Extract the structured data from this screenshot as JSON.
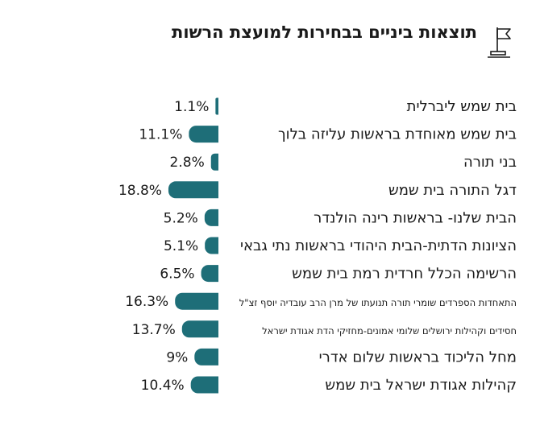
{
  "header": {
    "title": "תוצאות ביניים בבחירות למועצת הרשות",
    "icon": "flag-icon"
  },
  "colors": {
    "bar": "#1e6e78",
    "text": "#1a1a1a"
  },
  "chart_data": {
    "type": "bar",
    "orientation": "horizontal",
    "title": "תוצאות ביניים בבחירות למועצת הרשות",
    "unit": "%",
    "categories": [
      "בית שמש ליברלית",
      "בית שמש מאוחדת בראשות עליזה בלוך",
      "בני תורה",
      "דגל התורה בית שמש",
      "הבית שלנו- בראשות רינה הולנדר",
      "הציונות הדתית-הבית היהודי בראשות נתי גבאי",
      "הרשימה הכלל חרדית רמת בית שמש",
      "התאחדות הספרדים שומרי תורה תנועתו של מרן הרב עובדיה יוסף זצ\"ל",
      "חסידים וקהילות ירושלים שלומי אמונים-מחזיקי הדת אגודת ישראל",
      "מחל הליכוד בראשות שלום אדרי",
      "קהילות אגודת ישראל בית שמש"
    ],
    "values": [
      1.1,
      11.1,
      2.8,
      18.8,
      5.2,
      5.1,
      6.5,
      16.3,
      13.7,
      9,
      10.4
    ],
    "value_labels": [
      "1.1%",
      "11.1%",
      "2.8%",
      "18.8%",
      "5.2%",
      "5.1%",
      "6.5%",
      "16.3%",
      "13.7%",
      "9%",
      "10.4%"
    ]
  }
}
